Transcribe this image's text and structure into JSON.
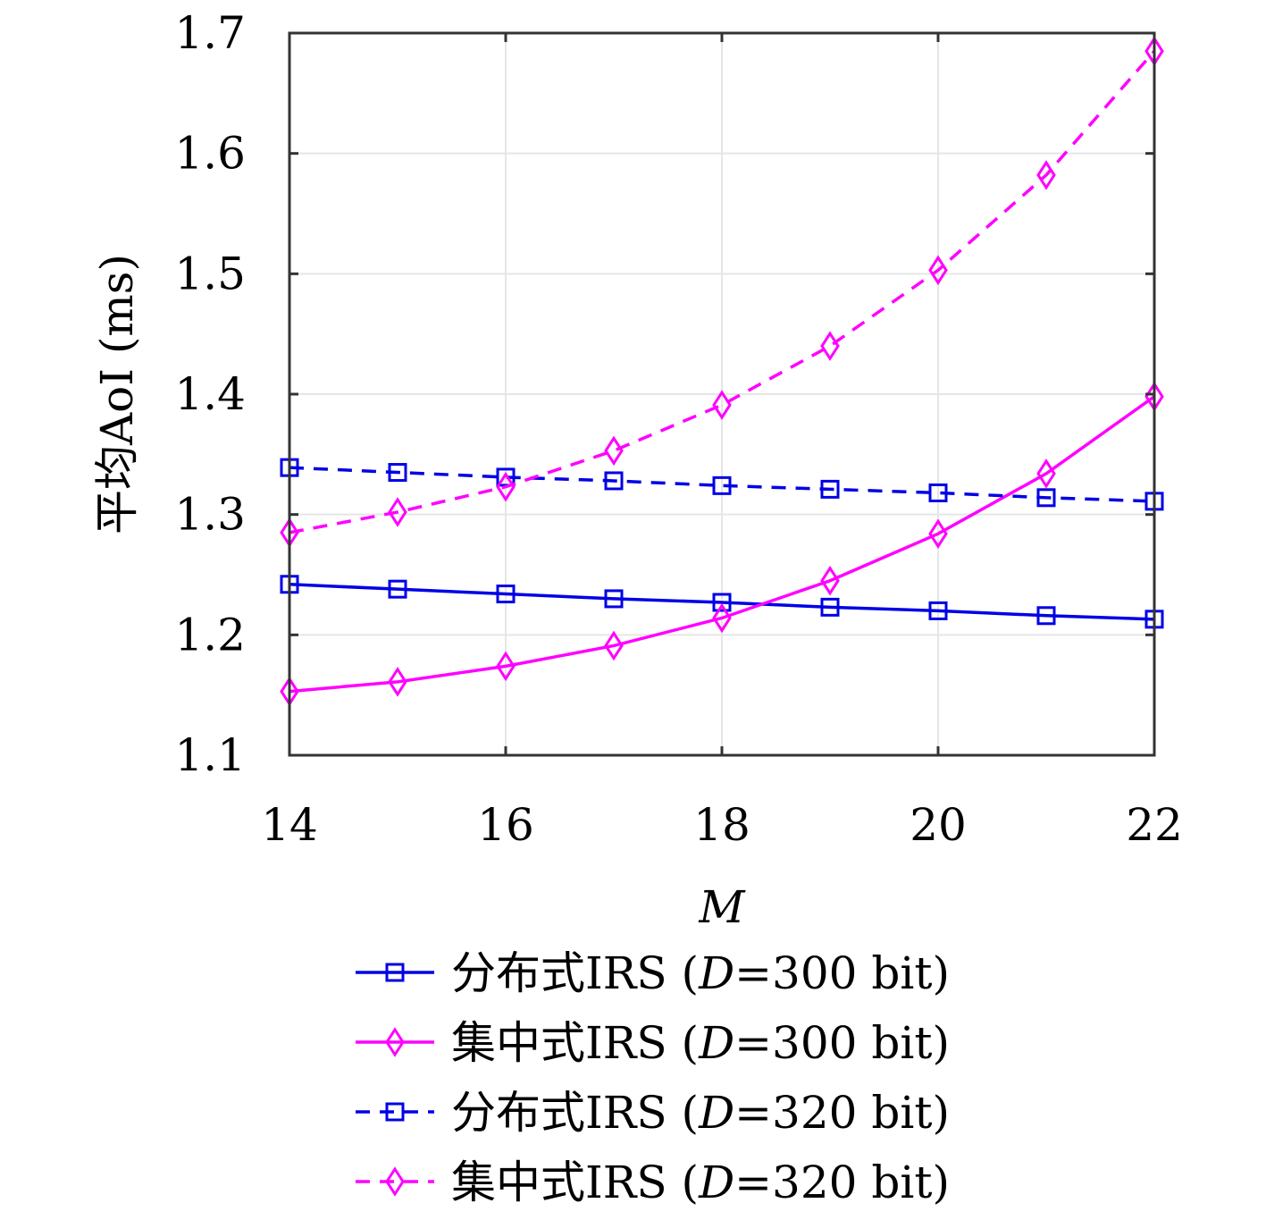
{
  "chart_data": {
    "type": "line",
    "x": [
      14,
      15,
      16,
      17,
      18,
      19,
      20,
      21,
      22
    ],
    "xlabel": "M",
    "ylabel": "平均AoI (ms)",
    "xlim": [
      14,
      22
    ],
    "ylim": [
      1.1,
      1.7
    ],
    "xticks": [
      14,
      16,
      18,
      20,
      22
    ],
    "yticks": [
      1.1,
      1.2,
      1.3,
      1.4,
      1.5,
      1.6,
      1.7
    ],
    "xtick_labels": [
      "14",
      "16",
      "18",
      "20",
      "22"
    ],
    "ytick_labels": [
      "1.1",
      "1.2",
      "1.3",
      "1.4",
      "1.5",
      "1.6",
      "1.7"
    ],
    "grid": true,
    "legend_position": "below",
    "series": [
      {
        "name": "分布式IRS (D=300 bit)",
        "color": "#0000e6",
        "line_style": "solid",
        "marker": "square",
        "values": [
          1.242,
          1.238,
          1.234,
          1.23,
          1.227,
          1.223,
          1.22,
          1.216,
          1.213
        ]
      },
      {
        "name": "集中式IRS (D=300 bit)",
        "color": "#ff00ff",
        "line_style": "solid",
        "marker": "diamond",
        "values": [
          1.153,
          1.161,
          1.174,
          1.191,
          1.214,
          1.245,
          1.284,
          1.334,
          1.398
        ]
      },
      {
        "name": "分布式IRS (D=320 bit)",
        "color": "#0000e6",
        "line_style": "dashed",
        "marker": "square",
        "values": [
          1.339,
          1.335,
          1.331,
          1.328,
          1.324,
          1.321,
          1.318,
          1.314,
          1.311
        ]
      },
      {
        "name": "集中式IRS (D=320 bit)",
        "color": "#ff00ff",
        "line_style": "dashed",
        "marker": "diamond",
        "values": [
          1.285,
          1.302,
          1.323,
          1.353,
          1.391,
          1.44,
          1.503,
          1.582,
          1.685
        ]
      }
    ],
    "legend": [
      {
        "prefix": "分布式IRS (",
        "var": "D",
        "suffix": "=300 bit)"
      },
      {
        "prefix": "集中式IRS (",
        "var": "D",
        "suffix": "=300 bit)"
      },
      {
        "prefix": "分布式IRS (",
        "var": "D",
        "suffix": "=320 bit)"
      },
      {
        "prefix": "集中式IRS (",
        "var": "D",
        "suffix": "=320 bit)"
      }
    ]
  }
}
